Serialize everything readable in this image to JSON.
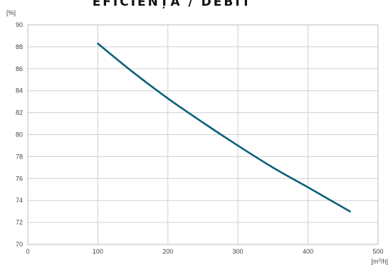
{
  "chart_data": {
    "type": "line",
    "title": "EFICIENȚA / DEBIT",
    "ylabel": "[%]",
    "xlabel_main": "[m",
    "xlabel_sup": "3",
    "xlabel_tail": "/h]",
    "xlim": [
      0,
      500
    ],
    "ylim": [
      70,
      90
    ],
    "xticks": [
      0,
      100,
      200,
      300,
      400,
      500
    ],
    "yticks": [
      70,
      72,
      74,
      76,
      78,
      80,
      82,
      84,
      86,
      88,
      90
    ],
    "grid": true,
    "series": [
      {
        "color": "#0b5f7a",
        "x": [
          100,
          150,
          200,
          250,
          300,
          350,
          400,
          460
        ],
        "y": [
          88.3,
          85.7,
          83.3,
          81.1,
          79.0,
          77.0,
          75.2,
          73.0
        ]
      }
    ]
  }
}
